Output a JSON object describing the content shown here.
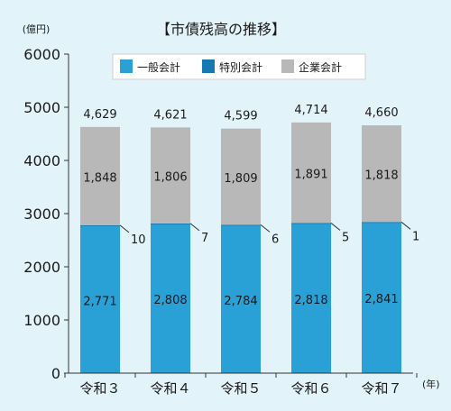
{
  "chart_data": {
    "type": "bar",
    "stacked": true,
    "title": "【市債残高の推移】",
    "ylabel": "(億円)",
    "xlabel": "(年)",
    "ylim": [
      0,
      6000
    ],
    "yticks": [
      "0",
      "1000",
      "2000",
      "3000",
      "4000",
      "5000",
      "6000"
    ],
    "grid": false,
    "legend_position": "top",
    "categories": [
      "令和３",
      "令和４",
      "令和５",
      "令和６",
      "令和７"
    ],
    "totals": [
      4629,
      4621,
      4599,
      4714,
      4660
    ],
    "total_labels": [
      "4,629",
      "4,621",
      "4,599",
      "4,714",
      "4,660"
    ],
    "series": [
      {
        "name": "一般会計",
        "values": [
          2771,
          2808,
          2784,
          2818,
          2841
        ],
        "labels": [
          "2,771",
          "2,808",
          "2,784",
          "2,818",
          "2,841"
        ],
        "color": "#2aa1d6"
      },
      {
        "name": "特別会計",
        "values": [
          10,
          7,
          6,
          5,
          1
        ],
        "labels": [
          "10",
          "7",
          "6",
          "5",
          "1"
        ],
        "color": "#1679b0"
      },
      {
        "name": "企業会計",
        "values": [
          1848,
          1806,
          1809,
          1891,
          1818
        ],
        "labels": [
          "1,848",
          "1,806",
          "1,809",
          "1,891",
          "1,818"
        ],
        "color": "#b8b8b8"
      }
    ]
  }
}
